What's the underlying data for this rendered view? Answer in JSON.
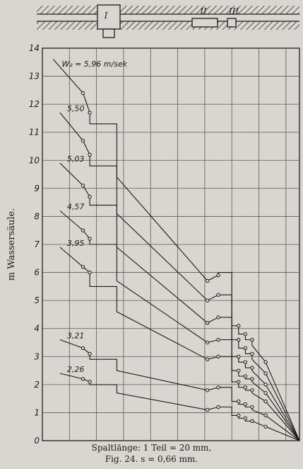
{
  "chart_data": {
    "type": "line",
    "title": "",
    "xlabel": "",
    "ylabel": "m Wassersäule.",
    "ylim": [
      0,
      14
    ],
    "yticks": [
      "0",
      "1",
      "2",
      "3",
      "4",
      "5",
      "6",
      "7",
      "8",
      "9",
      "10",
      "11",
      "12",
      "13",
      "14"
    ],
    "xlim": [
      0,
      19
    ],
    "grid": true,
    "series": [
      {
        "name": "W₂ = 5,96 m/sek",
        "x": [
          0.8,
          3,
          3.5,
          3.5,
          4,
          4,
          5.5,
          5.5,
          12.2,
          12.2,
          13,
          13,
          14,
          14,
          14.5,
          14.5,
          15,
          15,
          15.5,
          15.5,
          16.5,
          19
        ],
        "y": [
          13.6,
          12.4,
          11.7,
          11.3,
          11.3,
          11.3,
          11.3,
          9.4,
          5.7,
          5.7,
          5.9,
          6,
          6,
          4.1,
          4.1,
          3.8,
          3.8,
          3.6,
          3.6,
          3.4,
          2.8,
          0
        ]
      },
      {
        "name": "5,50",
        "x": [
          1.3,
          3,
          3.5,
          3.5,
          4,
          4,
          5.5,
          5.5,
          12.2,
          12.2,
          13,
          13,
          14,
          14,
          14.5,
          14.5,
          15,
          15,
          15.5,
          15.5,
          16.5,
          19
        ],
        "y": [
          11.7,
          10.7,
          10.2,
          9.8,
          9.8,
          9.8,
          9.8,
          8.1,
          5.0,
          5.0,
          5.2,
          5.2,
          5.2,
          3.6,
          3.6,
          3.3,
          3.3,
          3.1,
          3.1,
          2.9,
          2.4,
          0
        ]
      },
      {
        "name": "5,03",
        "x": [
          1.3,
          3,
          3.5,
          3.5,
          4,
          4,
          5.5,
          5.5,
          12.2,
          12.2,
          13,
          13,
          14,
          14,
          14.5,
          14.5,
          15,
          15,
          15.5,
          15.5,
          16.5,
          19
        ],
        "y": [
          9.9,
          9.1,
          8.7,
          8.4,
          8.4,
          8.4,
          8.4,
          6.9,
          4.2,
          4.2,
          4.4,
          4.4,
          4.4,
          3.0,
          3.0,
          2.8,
          2.8,
          2.6,
          2.6,
          2.5,
          2.0,
          0
        ]
      },
      {
        "name": "4,57",
        "x": [
          1.3,
          3,
          3.5,
          3.5,
          4,
          4,
          5.5,
          5.5,
          12.2,
          12.2,
          13,
          13,
          14,
          14,
          14.5,
          14.5,
          15,
          15,
          15.5,
          15.5,
          16.5,
          19
        ],
        "y": [
          8.2,
          7.5,
          7.2,
          7.0,
          7.0,
          7.0,
          7.0,
          5.7,
          3.5,
          3.5,
          3.6,
          3.6,
          3.6,
          2.5,
          2.5,
          2.3,
          2.3,
          2.2,
          2.2,
          2.1,
          1.7,
          0
        ]
      },
      {
        "name": "3,95",
        "x": [
          1.3,
          3,
          3.5,
          3.5,
          4,
          4,
          5.5,
          5.5,
          12.2,
          12.2,
          13,
          13,
          14,
          14,
          14.5,
          14.5,
          15,
          15,
          15.5,
          15.5,
          16.5,
          19
        ],
        "y": [
          6.9,
          6.2,
          6.0,
          5.5,
          5.5,
          5.5,
          5.5,
          4.6,
          2.9,
          2.9,
          3.0,
          3.0,
          3.0,
          2.1,
          2.1,
          1.9,
          1.9,
          1.8,
          1.8,
          1.7,
          1.4,
          0
        ]
      },
      {
        "name": "3,21",
        "x": [
          1.3,
          3,
          3.5,
          3.5,
          4,
          4,
          5.5,
          5.5,
          12.2,
          12.2,
          13,
          13,
          14,
          14,
          14.5,
          14.5,
          15,
          15,
          15.5,
          15.5,
          16.5,
          19
        ],
        "y": [
          3.6,
          3.3,
          3.1,
          2.9,
          2.9,
          2.9,
          2.9,
          2.5,
          1.8,
          1.8,
          1.9,
          1.9,
          1.9,
          1.4,
          1.4,
          1.3,
          1.3,
          1.2,
          1.2,
          1.1,
          0.9,
          0
        ]
      },
      {
        "name": "2,26",
        "x": [
          1.3,
          3,
          3.5,
          3.5,
          4,
          4,
          5.5,
          5.5,
          12.2,
          12.2,
          13,
          13,
          14,
          14,
          14.5,
          14.5,
          15,
          15,
          15.5,
          15.5,
          16.5,
          19
        ],
        "y": [
          2.4,
          2.2,
          2.1,
          2.0,
          2.0,
          2.0,
          2.0,
          1.7,
          1.1,
          1.1,
          1.2,
          1.2,
          1.2,
          0.9,
          0.9,
          0.8,
          0.8,
          0.7,
          0.7,
          0.7,
          0.5,
          0
        ]
      }
    ]
  },
  "header_labels": [
    "I",
    "II",
    "III"
  ],
  "caption": {
    "line1": "Spaltlänge: 1 Teil = 20 mm,",
    "line2": "Fig. 24.   s = 0,66 mm."
  },
  "colors": {
    "paper": "#d8d6d1",
    "ink": "#1c1c1c",
    "grid": "#5a5a5a",
    "bleed": "#8d8a85"
  }
}
